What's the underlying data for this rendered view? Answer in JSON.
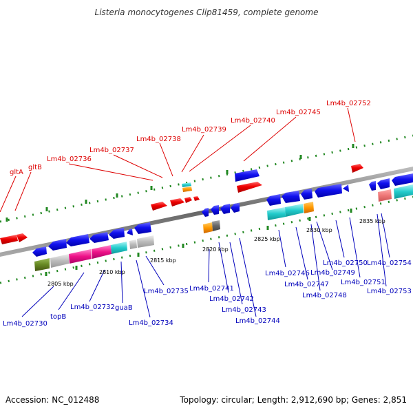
{
  "title": "Listeria monocytogenes Clip81459, complete genome",
  "footer": {
    "accession": "Accession: NC_012488",
    "topology": "Topology: circular; Length: 2,912,690 bp; Genes: 2,851"
  },
  "scale_ticks": [
    "2805 kbp",
    "2810 kbp",
    "2815 kbp",
    "2820 kbp",
    "2825 kbp",
    "2830 kbp",
    "2835 kbp"
  ],
  "top_labels": [
    "gltA",
    "gltB",
    "Lm4b_02736",
    "Lm4b_02737",
    "Lm4b_02738",
    "Lm4b_02739",
    "Lm4b_02740",
    "Lm4b_02745",
    "Lm4b_02752"
  ],
  "bottom_labels": [
    "Lm4b_02730",
    "topB",
    "Lm4b_02732",
    "guaB",
    "Lm4b_02734",
    "Lm4b_02735",
    "Lm4b_02741",
    "Lm4b_02742",
    "Lm4b_02743",
    "Lm4b_02744",
    "Lm4b_02746",
    "Lm4b_02747",
    "Lm4b_02748",
    "Lm4b_02749",
    "Lm4b_02750",
    "Lm4b_02751",
    "Lm4b_02753",
    "Lm4b_02754"
  ],
  "colors": {
    "forward_gene": "#ee0000",
    "reverse_gene": "#0000ee",
    "backbone": "#888888",
    "top_label": "#dd0000",
    "bottom_label": "#0000bb",
    "dots": "#228822"
  }
}
